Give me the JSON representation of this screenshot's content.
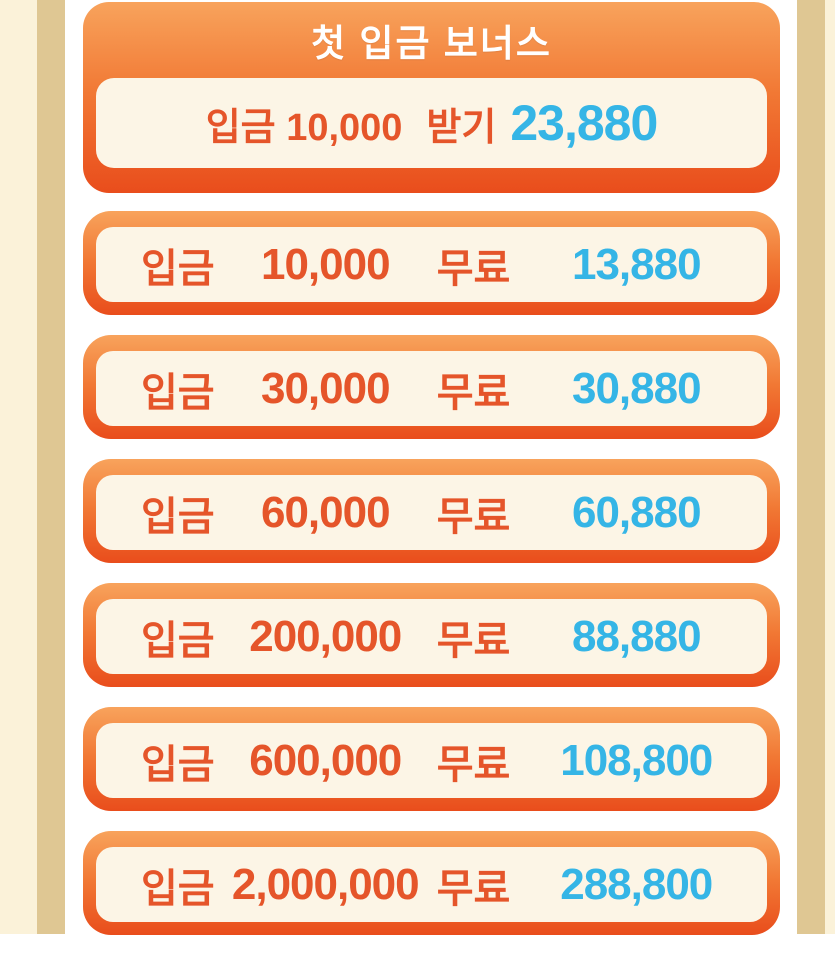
{
  "colors": {
    "card_gradient_top": "#F8A35C",
    "card_gradient_bottom": "#E94D1C",
    "panel_cream": "#FCF5E6",
    "deposit_text_orange": "#E5552A",
    "bonus_text_cyan": "#35B5E6",
    "side_strip_tan": "#DFC793",
    "side_strip_cream": "#FBF2D9",
    "title_text": "#FFFFFF"
  },
  "header": {
    "title": "첫 입금 보너스"
  },
  "first_bonus": {
    "deposit_label": "입금",
    "deposit_amount": "10,000",
    "claim_label": "받기",
    "bonus_value": "23,880"
  },
  "tiers": [
    {
      "deposit_label": "입금",
      "deposit_amount": "10,000",
      "free_label": "무료",
      "bonus_value": "13,880"
    },
    {
      "deposit_label": "입금",
      "deposit_amount": "30,000",
      "free_label": "무료",
      "bonus_value": "30,880"
    },
    {
      "deposit_label": "입금",
      "deposit_amount": "60,000",
      "free_label": "무료",
      "bonus_value": "60,880"
    },
    {
      "deposit_label": "입금",
      "deposit_amount": "200,000",
      "free_label": "무료",
      "bonus_value": "88,880"
    },
    {
      "deposit_label": "입금",
      "deposit_amount": "600,000",
      "free_label": "무료",
      "bonus_value": "108,800"
    },
    {
      "deposit_label": "입금",
      "deposit_amount": "2,000,000",
      "free_label": "무료",
      "bonus_value": "288,800"
    }
  ]
}
